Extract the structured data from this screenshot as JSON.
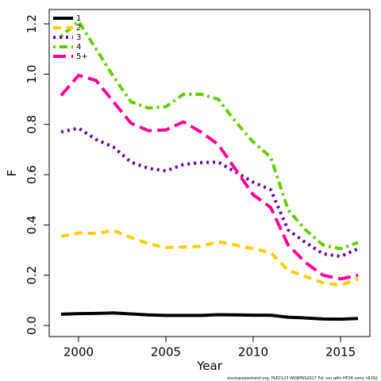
{
  "chart_data": {
    "type": "line",
    "x_label": "Year",
    "y_label": "F",
    "footnote": "stockassessment.org, PLE2123 WGBFAS2017 Fst run with HF26 conv. r8292",
    "x": [
      1999,
      2000,
      2001,
      2002,
      2003,
      2004,
      2005,
      2006,
      2007,
      2008,
      2009,
      2010,
      2011,
      2012,
      2013,
      2014,
      2015,
      2016
    ],
    "series": [
      {
        "name": "1",
        "color": "#000000",
        "values": [
          0.045,
          0.047,
          0.048,
          0.05,
          0.046,
          0.042,
          0.04,
          0.04,
          0.04,
          0.043,
          0.042,
          0.041,
          0.041,
          0.033,
          0.03,
          0.026,
          0.025,
          0.028
        ]
      },
      {
        "name": "2",
        "color": "#FFCC00",
        "values": [
          0.354,
          0.368,
          0.366,
          0.378,
          0.35,
          0.325,
          0.31,
          0.312,
          0.315,
          0.333,
          0.32,
          0.305,
          0.29,
          0.22,
          0.195,
          0.17,
          0.16,
          0.185
        ]
      },
      {
        "name": "3",
        "color": "#660099",
        "values": [
          0.77,
          0.785,
          0.74,
          0.71,
          0.65,
          0.625,
          0.615,
          0.64,
          0.648,
          0.65,
          0.61,
          0.57,
          0.54,
          0.38,
          0.33,
          0.285,
          0.275,
          0.305
        ]
      },
      {
        "name": "4",
        "color": "#66CC00",
        "values": [
          1.15,
          1.21,
          1.1,
          0.99,
          0.89,
          0.865,
          0.87,
          0.92,
          0.92,
          0.9,
          0.81,
          0.73,
          0.67,
          0.46,
          0.38,
          0.32,
          0.305,
          0.33
        ]
      },
      {
        "name": "5+",
        "color": "#FF0099",
        "values": [
          0.915,
          0.995,
          0.975,
          0.89,
          0.805,
          0.775,
          0.778,
          0.81,
          0.77,
          0.72,
          0.62,
          0.52,
          0.47,
          0.32,
          0.25,
          0.2,
          0.185,
          0.2
        ]
      }
    ],
    "xlim": [
      1998.32,
      2016.68
    ],
    "xticks": [
      2000,
      2005,
      2010,
      2015
    ],
    "ylim": [
      -0.044,
      1.257
    ],
    "yticks": [
      {
        "value": 0,
        "label": "0.0"
      },
      0.2,
      0.4,
      0.6,
      0.8,
      {
        "value": 1,
        "label": "1.0"
      },
      1.2
    ],
    "legend": "top-left"
  }
}
